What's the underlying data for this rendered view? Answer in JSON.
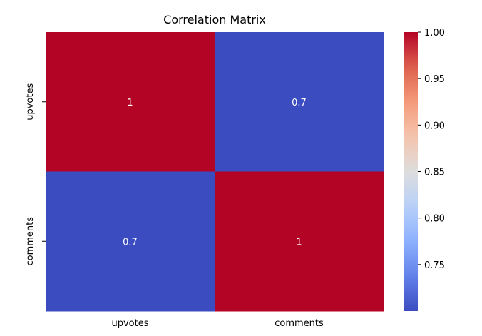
{
  "chart_data": {
    "type": "heatmap",
    "title": "Correlation Matrix",
    "x_categories": [
      "upvotes",
      "comments"
    ],
    "y_categories": [
      "upvotes",
      "comments"
    ],
    "values": [
      [
        1,
        0.7
      ],
      [
        0.7,
        1
      ]
    ],
    "cell_labels": [
      [
        "1",
        "0.7"
      ],
      [
        "0.7",
        "1"
      ]
    ],
    "colormap": "coolwarm",
    "colors": {
      "high": "#b40426",
      "low": "#3b4cc0"
    },
    "colorbar": {
      "range": [
        0.7,
        1.0
      ],
      "ticks": [
        0.75,
        0.8,
        0.85,
        0.9,
        0.95,
        1.0
      ],
      "tick_labels": [
        "0.75",
        "0.80",
        "0.85",
        "0.90",
        "0.95",
        "1.00"
      ]
    }
  }
}
